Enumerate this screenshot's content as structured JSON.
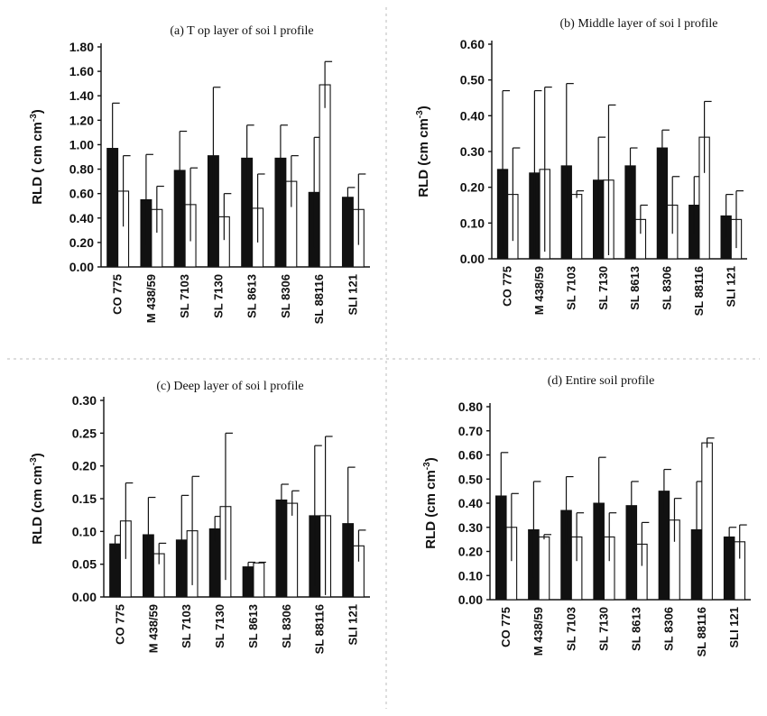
{
  "figure": {
    "categories": [
      "CO 775",
      "M 438/59",
      "SL 7103",
      "SL 7130",
      "SL 8613",
      "SL 8306",
      "SL 88116",
      "SLI 121"
    ]
  },
  "chart_data": [
    {
      "type": "bar",
      "panel": "a",
      "title": "(a) T op layer of soi l profile",
      "ylabel": "RLD ( cm cm",
      "ylabel_sup": "-3",
      "ylabel_end": ")",
      "ylim": [
        0,
        1.8
      ],
      "yticks": [
        "0.00",
        "0.20",
        "0.40",
        "0.60",
        "0.80",
        "1.00",
        "1.20",
        "1.40",
        "1.60",
        "1.80"
      ],
      "categories": [
        "CO 775",
        "M 438/59",
        "SL 7103",
        "SL 7130",
        "SL 8613",
        "SL 8306",
        "SL 88116",
        "SLI 121"
      ],
      "series": [
        {
          "values": [
            0.97,
            0.55,
            0.79,
            0.91,
            0.89,
            0.89,
            0.61,
            0.57
          ],
          "errors": [
            0.37,
            0.37,
            0.32,
            0.56,
            0.27,
            0.27,
            0.45,
            0.08
          ],
          "color": "#111111"
        },
        {
          "values": [
            0.62,
            0.47,
            0.51,
            0.41,
            0.48,
            0.7,
            1.49,
            0.47
          ],
          "errors": [
            0.29,
            0.19,
            0.3,
            0.19,
            0.28,
            0.21,
            0.19,
            0.29
          ],
          "color": "#ffffff"
        }
      ]
    },
    {
      "type": "bar",
      "panel": "b",
      "title": "(b) Middle layer of soi l profile",
      "ylabel": "RLD (cm cm",
      "ylabel_sup": "-3",
      "ylabel_end": ")",
      "ylim": [
        0,
        0.6
      ],
      "yticks": [
        "0.00",
        "0.10",
        "0.20",
        "0.30",
        "0.40",
        "0.50",
        "0.60"
      ],
      "categories": [
        "CO 775",
        "M 438/59",
        "SL 7103",
        "SL 7130",
        "SL 8613",
        "SL 8306",
        "SL 88116",
        "SLI 121"
      ],
      "series": [
        {
          "values": [
            0.25,
            0.24,
            0.26,
            0.22,
            0.26,
            0.31,
            0.15,
            0.12
          ],
          "errors": [
            0.22,
            0.23,
            0.23,
            0.12,
            0.05,
            0.05,
            0.08,
            0.06
          ],
          "color": "#111111"
        },
        {
          "values": [
            0.18,
            0.25,
            0.18,
            0.22,
            0.11,
            0.15,
            0.34,
            0.11
          ],
          "errors": [
            0.13,
            0.23,
            0.01,
            0.21,
            0.04,
            0.08,
            0.1,
            0.08
          ],
          "color": "#ffffff"
        }
      ]
    },
    {
      "type": "bar",
      "panel": "c",
      "title": "(c) Deep layer of soi l profile",
      "ylabel": "RLD (cm cm",
      "ylabel_sup": "-3",
      "ylabel_end": ")",
      "ylim": [
        0,
        0.3
      ],
      "yticks": [
        "0.00",
        "0.05",
        "0.10",
        "0.15",
        "0.20",
        "0.25",
        "0.30"
      ],
      "categories": [
        "CO 775",
        "M 438/59",
        "SL 7103",
        "SL 7130",
        "SL 8613",
        "SL 8306",
        "SL 88116",
        "SLI 121"
      ],
      "series": [
        {
          "values": [
            0.081,
            0.095,
            0.087,
            0.104,
            0.046,
            0.148,
            0.124,
            0.112
          ],
          "errors": [
            0.013,
            0.057,
            0.068,
            0.019,
            0.007,
            0.024,
            0.107,
            0.086
          ],
          "color": "#111111"
        },
        {
          "values": [
            0.116,
            0.066,
            0.101,
            0.138,
            0.052,
            0.143,
            0.124,
            0.078
          ],
          "errors": [
            0.058,
            0.016,
            0.083,
            0.112,
            0.001,
            0.019,
            0.121,
            0.024
          ],
          "color": "#ffffff"
        }
      ]
    },
    {
      "type": "bar",
      "panel": "d",
      "title": "(d) Entire soil profile",
      "ylabel": "RLD (cm cm",
      "ylabel_sup": "-3",
      "ylabel_end": ")",
      "ylim": [
        0,
        0.8
      ],
      "yticks": [
        "0.00",
        "0.10",
        "0.20",
        "0.30",
        "0.40",
        "0.50",
        "0.60",
        "0.70",
        "0.80"
      ],
      "categories": [
        "CO 775",
        "M 438/59",
        "SL 7103",
        "SL 7130",
        "SL 8613",
        "SL 8306",
        "SL 88116",
        "SLI 121"
      ],
      "series": [
        {
          "values": [
            0.43,
            0.29,
            0.37,
            0.4,
            0.39,
            0.45,
            0.29,
            0.26
          ],
          "errors": [
            0.18,
            0.2,
            0.14,
            0.19,
            0.1,
            0.09,
            0.2,
            0.04
          ],
          "color": "#111111"
        },
        {
          "values": [
            0.3,
            0.26,
            0.26,
            0.26,
            0.23,
            0.33,
            0.65,
            0.24
          ],
          "errors": [
            0.14,
            0.01,
            0.1,
            0.1,
            0.09,
            0.09,
            0.02,
            0.07
          ],
          "color": "#ffffff"
        }
      ]
    }
  ]
}
